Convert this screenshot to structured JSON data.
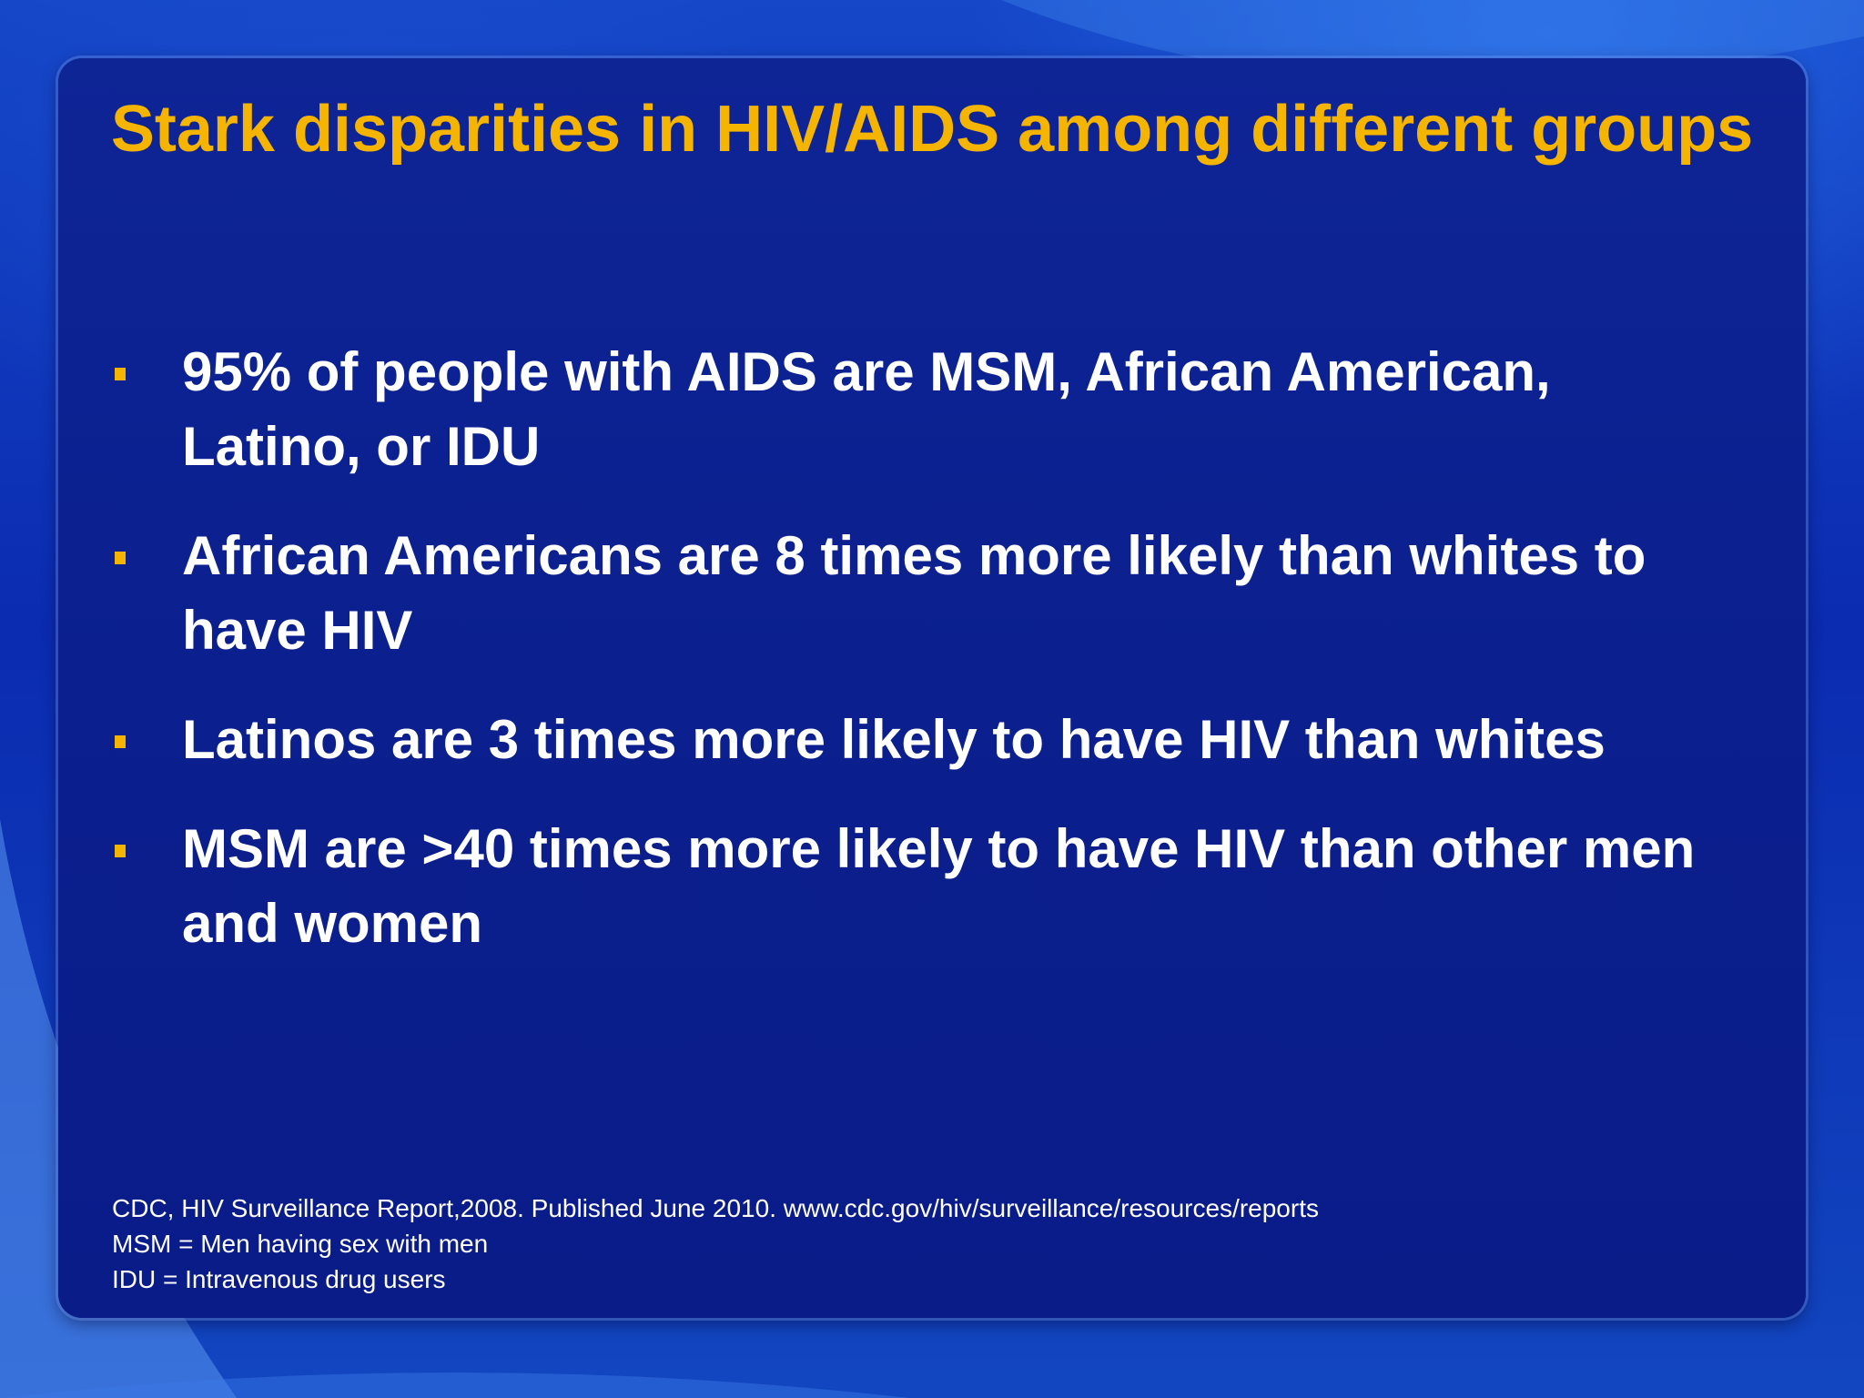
{
  "slide": {
    "title": "Stark disparities in HIV/AIDS among different groups",
    "bullets": [
      "95% of people with AIDS are MSM, African American, Latino, or IDU",
      "African Americans are 8 times more likely than whites to have HIV",
      "Latinos are 3 times more likely to have HIV than whites",
      "MSM are >40 times more likely to have HIV than other men and women"
    ],
    "footnotes": [
      "CDC, HIV Surveillance Report,2008.  Published June 2010. www.cdc.gov/hiv/surveillance/resources/reports",
      "MSM = Men having sex with men",
      "IDU = Intravenous drug users"
    ]
  },
  "colors": {
    "title": "#f4b400",
    "bullet_marker": "#f4b400",
    "text": "#ffffff",
    "panel": "#0b1f8e",
    "background": "#1547c8"
  }
}
